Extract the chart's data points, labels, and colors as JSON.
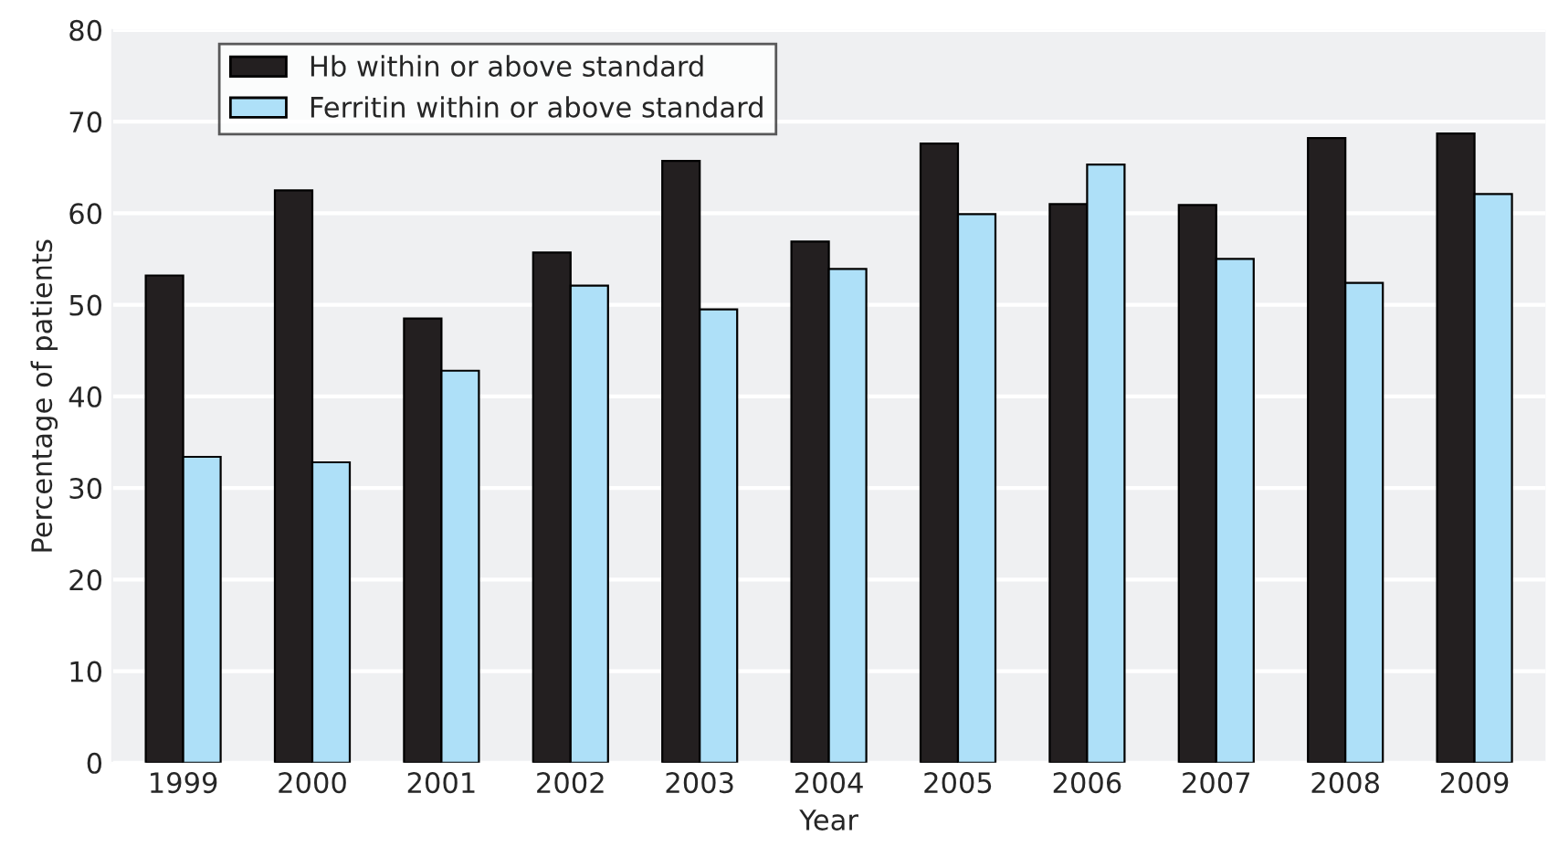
{
  "chart_data": {
    "type": "bar",
    "xlabel": "Year",
    "ylabel": "Percentage of patients",
    "categories": [
      "1999",
      "2000",
      "2001",
      "2002",
      "2003",
      "2004",
      "2005",
      "2006",
      "2007",
      "2008",
      "2009"
    ],
    "series": [
      {
        "name": "Hb within or above standard",
        "color": "#231f20",
        "values": [
          53.2,
          62.5,
          48.5,
          55.7,
          65.7,
          56.9,
          67.6,
          61.0,
          60.9,
          68.2,
          68.7
        ]
      },
      {
        "name": "Ferritin within or above standard",
        "color": "#aee0f8",
        "values": [
          33.4,
          32.8,
          42.8,
          52.1,
          49.5,
          53.9,
          59.9,
          65.3,
          55.0,
          52.4,
          62.1
        ]
      }
    ],
    "ylim": [
      0,
      80
    ],
    "yticks": [
      0,
      10,
      20,
      30,
      40,
      50,
      60,
      70,
      80
    ],
    "grid": "y",
    "legend": "top left"
  }
}
